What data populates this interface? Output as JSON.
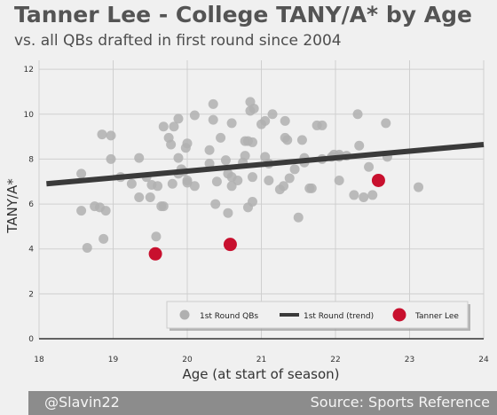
{
  "title": "Tanner Lee - College TANY/A* by Age",
  "subtitle": "vs. all QBs drafted in first round since 2004",
  "footer": {
    "left": "@Slavin22",
    "right": "Source: Sports Reference"
  },
  "colors": {
    "background": "#f0f0f0",
    "qb_points": "#b0b0b0",
    "trend": "#3a3a3a",
    "tanner": "#c8102e",
    "footer_bg": "#8c8c8c"
  },
  "chart_data": {
    "type": "scatter",
    "xlabel": "Age (at start of season)",
    "ylabel": "TANY/A*",
    "xlim": [
      18,
      24
    ],
    "ylim": [
      0,
      12.4
    ],
    "xticks": [
      18,
      19,
      20,
      21,
      22,
      23,
      24
    ],
    "yticks": [
      0,
      2,
      4,
      6,
      8,
      10,
      12
    ],
    "grid": true,
    "legend": {
      "position": "lower-right",
      "entries": [
        "1st Round QBs",
        "1st Round (trend)",
        "Tanner Lee"
      ]
    },
    "series": [
      {
        "name": "1st Round QBs",
        "type": "scatter",
        "points": [
          [
            18.57,
            7.35
          ],
          [
            18.57,
            5.7
          ],
          [
            18.65,
            4.05
          ],
          [
            18.75,
            5.9
          ],
          [
            18.82,
            5.85
          ],
          [
            18.85,
            9.1
          ],
          [
            18.87,
            4.45
          ],
          [
            18.9,
            5.7
          ],
          [
            18.97,
            9.05
          ],
          [
            18.97,
            8.0
          ],
          [
            19.1,
            7.2
          ],
          [
            19.25,
            6.9
          ],
          [
            19.35,
            8.05
          ],
          [
            19.35,
            6.3
          ],
          [
            19.45,
            7.2
          ],
          [
            19.5,
            6.3
          ],
          [
            19.52,
            6.85
          ],
          [
            19.58,
            4.55
          ],
          [
            19.6,
            6.8
          ],
          [
            19.65,
            5.9
          ],
          [
            19.68,
            5.9
          ],
          [
            19.68,
            9.45
          ],
          [
            19.75,
            8.95
          ],
          [
            19.78,
            8.65
          ],
          [
            19.8,
            6.9
          ],
          [
            19.82,
            9.45
          ],
          [
            19.88,
            7.35
          ],
          [
            19.88,
            8.05
          ],
          [
            19.88,
            9.8
          ],
          [
            19.92,
            7.55
          ],
          [
            19.95,
            7.45
          ],
          [
            19.98,
            8.5
          ],
          [
            20.0,
            8.7
          ],
          [
            20.0,
            7.05
          ],
          [
            20.0,
            6.95
          ],
          [
            20.1,
            6.8
          ],
          [
            20.1,
            9.95
          ],
          [
            20.3,
            8.4
          ],
          [
            20.3,
            7.8
          ],
          [
            20.35,
            10.45
          ],
          [
            20.35,
            9.75
          ],
          [
            20.38,
            6.0
          ],
          [
            20.4,
            7.0
          ],
          [
            20.45,
            8.95
          ],
          [
            20.52,
            7.95
          ],
          [
            20.55,
            7.35
          ],
          [
            20.55,
            5.6
          ],
          [
            20.6,
            6.8
          ],
          [
            20.6,
            7.2
          ],
          [
            20.6,
            9.6
          ],
          [
            20.68,
            7.05
          ],
          [
            20.75,
            7.85
          ],
          [
            20.78,
            8.8
          ],
          [
            20.78,
            8.15
          ],
          [
            20.82,
            8.8
          ],
          [
            20.82,
            5.85
          ],
          [
            20.85,
            10.55
          ],
          [
            20.85,
            10.15
          ],
          [
            20.88,
            6.1
          ],
          [
            20.88,
            7.2
          ],
          [
            20.88,
            8.75
          ],
          [
            20.9,
            10.25
          ],
          [
            21.0,
            9.55
          ],
          [
            21.05,
            9.7
          ],
          [
            21.05,
            8.1
          ],
          [
            21.1,
            7.8
          ],
          [
            21.1,
            7.05
          ],
          [
            21.15,
            10.0
          ],
          [
            21.25,
            6.65
          ],
          [
            21.3,
            6.8
          ],
          [
            21.32,
            9.7
          ],
          [
            21.32,
            8.95
          ],
          [
            21.35,
            8.85
          ],
          [
            21.38,
            7.15
          ],
          [
            21.45,
            7.55
          ],
          [
            21.5,
            5.4
          ],
          [
            21.55,
            8.85
          ],
          [
            21.58,
            7.85
          ],
          [
            21.58,
            8.05
          ],
          [
            21.65,
            6.7
          ],
          [
            21.68,
            6.7
          ],
          [
            21.75,
            9.5
          ],
          [
            21.82,
            9.5
          ],
          [
            21.82,
            8.0
          ],
          [
            21.95,
            8.1
          ],
          [
            21.98,
            8.2
          ],
          [
            22.05,
            7.05
          ],
          [
            22.05,
            8.1
          ],
          [
            22.05,
            8.2
          ],
          [
            22.15,
            8.15
          ],
          [
            22.25,
            6.4
          ],
          [
            22.3,
            10.0
          ],
          [
            22.32,
            8.6
          ],
          [
            22.38,
            6.3
          ],
          [
            22.45,
            7.65
          ],
          [
            22.5,
            6.4
          ],
          [
            22.68,
            9.6
          ],
          [
            22.7,
            8.1
          ],
          [
            23.12,
            6.75
          ]
        ]
      },
      {
        "name": "1st Round (trend)",
        "type": "line",
        "points": [
          [
            18.1,
            6.9
          ],
          [
            24.0,
            8.65
          ]
        ]
      },
      {
        "name": "Tanner Lee",
        "type": "scatter",
        "points": [
          [
            19.57,
            3.78
          ],
          [
            20.58,
            4.2
          ],
          [
            22.58,
            7.05
          ]
        ]
      }
    ]
  }
}
